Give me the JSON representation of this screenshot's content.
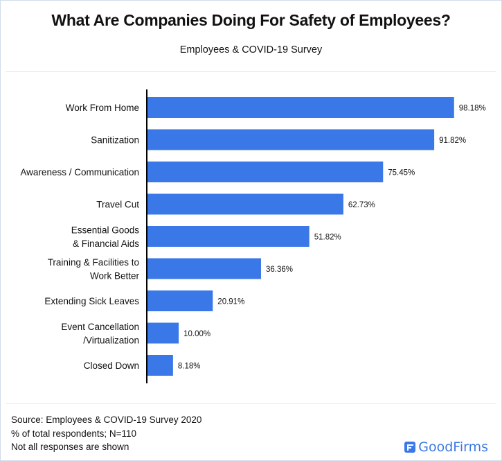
{
  "header": {
    "title": "What Are Companies Doing For Safety of Employees?",
    "subtitle": "Employees & COVID-19 Survey"
  },
  "footer": {
    "lines": [
      "Source: Employees & COVID-19 Survey 2020",
      "% of total respondents; N=110",
      "Not all responses are shown"
    ],
    "brand": "GoodFirms"
  },
  "colors": {
    "bar": "#3b78e7",
    "axis": "#000000",
    "brand": "#3b78e7"
  },
  "chart_data": {
    "type": "bar",
    "orientation": "horizontal",
    "title": "What Are Companies Doing For Safety of Employees?",
    "subtitle": "Employees & COVID-19 Survey",
    "xlabel": "",
    "ylabel": "",
    "xlim": [
      0,
      100
    ],
    "grid": false,
    "legend": "none",
    "unit": "%",
    "categories": [
      [
        "Work From Home"
      ],
      [
        "Sanitization"
      ],
      [
        "Awareness / Communication"
      ],
      [
        "Travel Cut"
      ],
      [
        "Essential Goods",
        "& Financial Aids"
      ],
      [
        "Training & Facilities to",
        "Work Better"
      ],
      [
        "Extending Sick Leaves"
      ],
      [
        "Event Cancellation",
        "/Virtualization"
      ],
      [
        "Closed Down"
      ]
    ],
    "values": [
      98.18,
      91.82,
      75.45,
      62.73,
      51.82,
      36.36,
      20.91,
      10.0,
      8.18
    ],
    "data_labels": [
      "98.18%",
      "91.82%",
      "75.45%",
      "62.73%",
      "51.82%",
      "36.36%",
      "20.91%",
      "10.00%",
      "8.18%"
    ]
  }
}
